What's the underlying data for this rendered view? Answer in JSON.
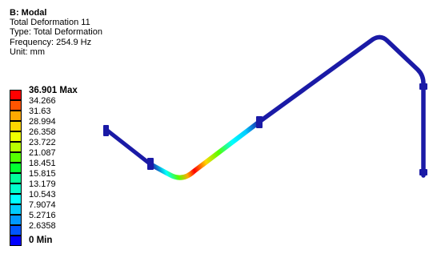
{
  "info": {
    "title": "B: Modal",
    "result_name": "Total Deformation 11",
    "type_line": "Type: Total Deformation",
    "frequency_line": "Frequency: 254.9 Hz",
    "unit_line": "Unit: mm"
  },
  "legend": {
    "labels": [
      "36.901 Max",
      "34.266",
      "31.63",
      "28.994",
      "26.358",
      "23.722",
      "21.087",
      "18.451",
      "15.815",
      "13.179",
      "10.543",
      "7.9074",
      "5.2716",
      "2.6358",
      "0 Min"
    ],
    "colors": [
      "#ff0000",
      "#ff5500",
      "#ffaa00",
      "#ffd700",
      "#f0ff00",
      "#b8ff00",
      "#55ff00",
      "#00ff30",
      "#00ff99",
      "#00ffcc",
      "#00ffff",
      "#00ccff",
      "#0099ff",
      "#0055ff",
      "#0000ff"
    ]
  },
  "model": {
    "pipe_color": "#1a1aa6",
    "gradient_stops": [
      {
        "offset": 0.0,
        "color": "#1a1aa6"
      },
      {
        "offset": 0.1,
        "color": "#00ffff"
      },
      {
        "offset": 0.18,
        "color": "#55ff00"
      },
      {
        "offset": 0.26,
        "color": "#ffaa00"
      },
      {
        "offset": 0.33,
        "color": "#ff0000"
      },
      {
        "offset": 0.45,
        "color": "#ffd700"
      },
      {
        "offset": 0.58,
        "color": "#55ff00"
      },
      {
        "offset": 0.72,
        "color": "#00ffff"
      },
      {
        "offset": 0.86,
        "color": "#00ccff"
      },
      {
        "offset": 1.0,
        "color": "#1a1aa6"
      }
    ]
  }
}
